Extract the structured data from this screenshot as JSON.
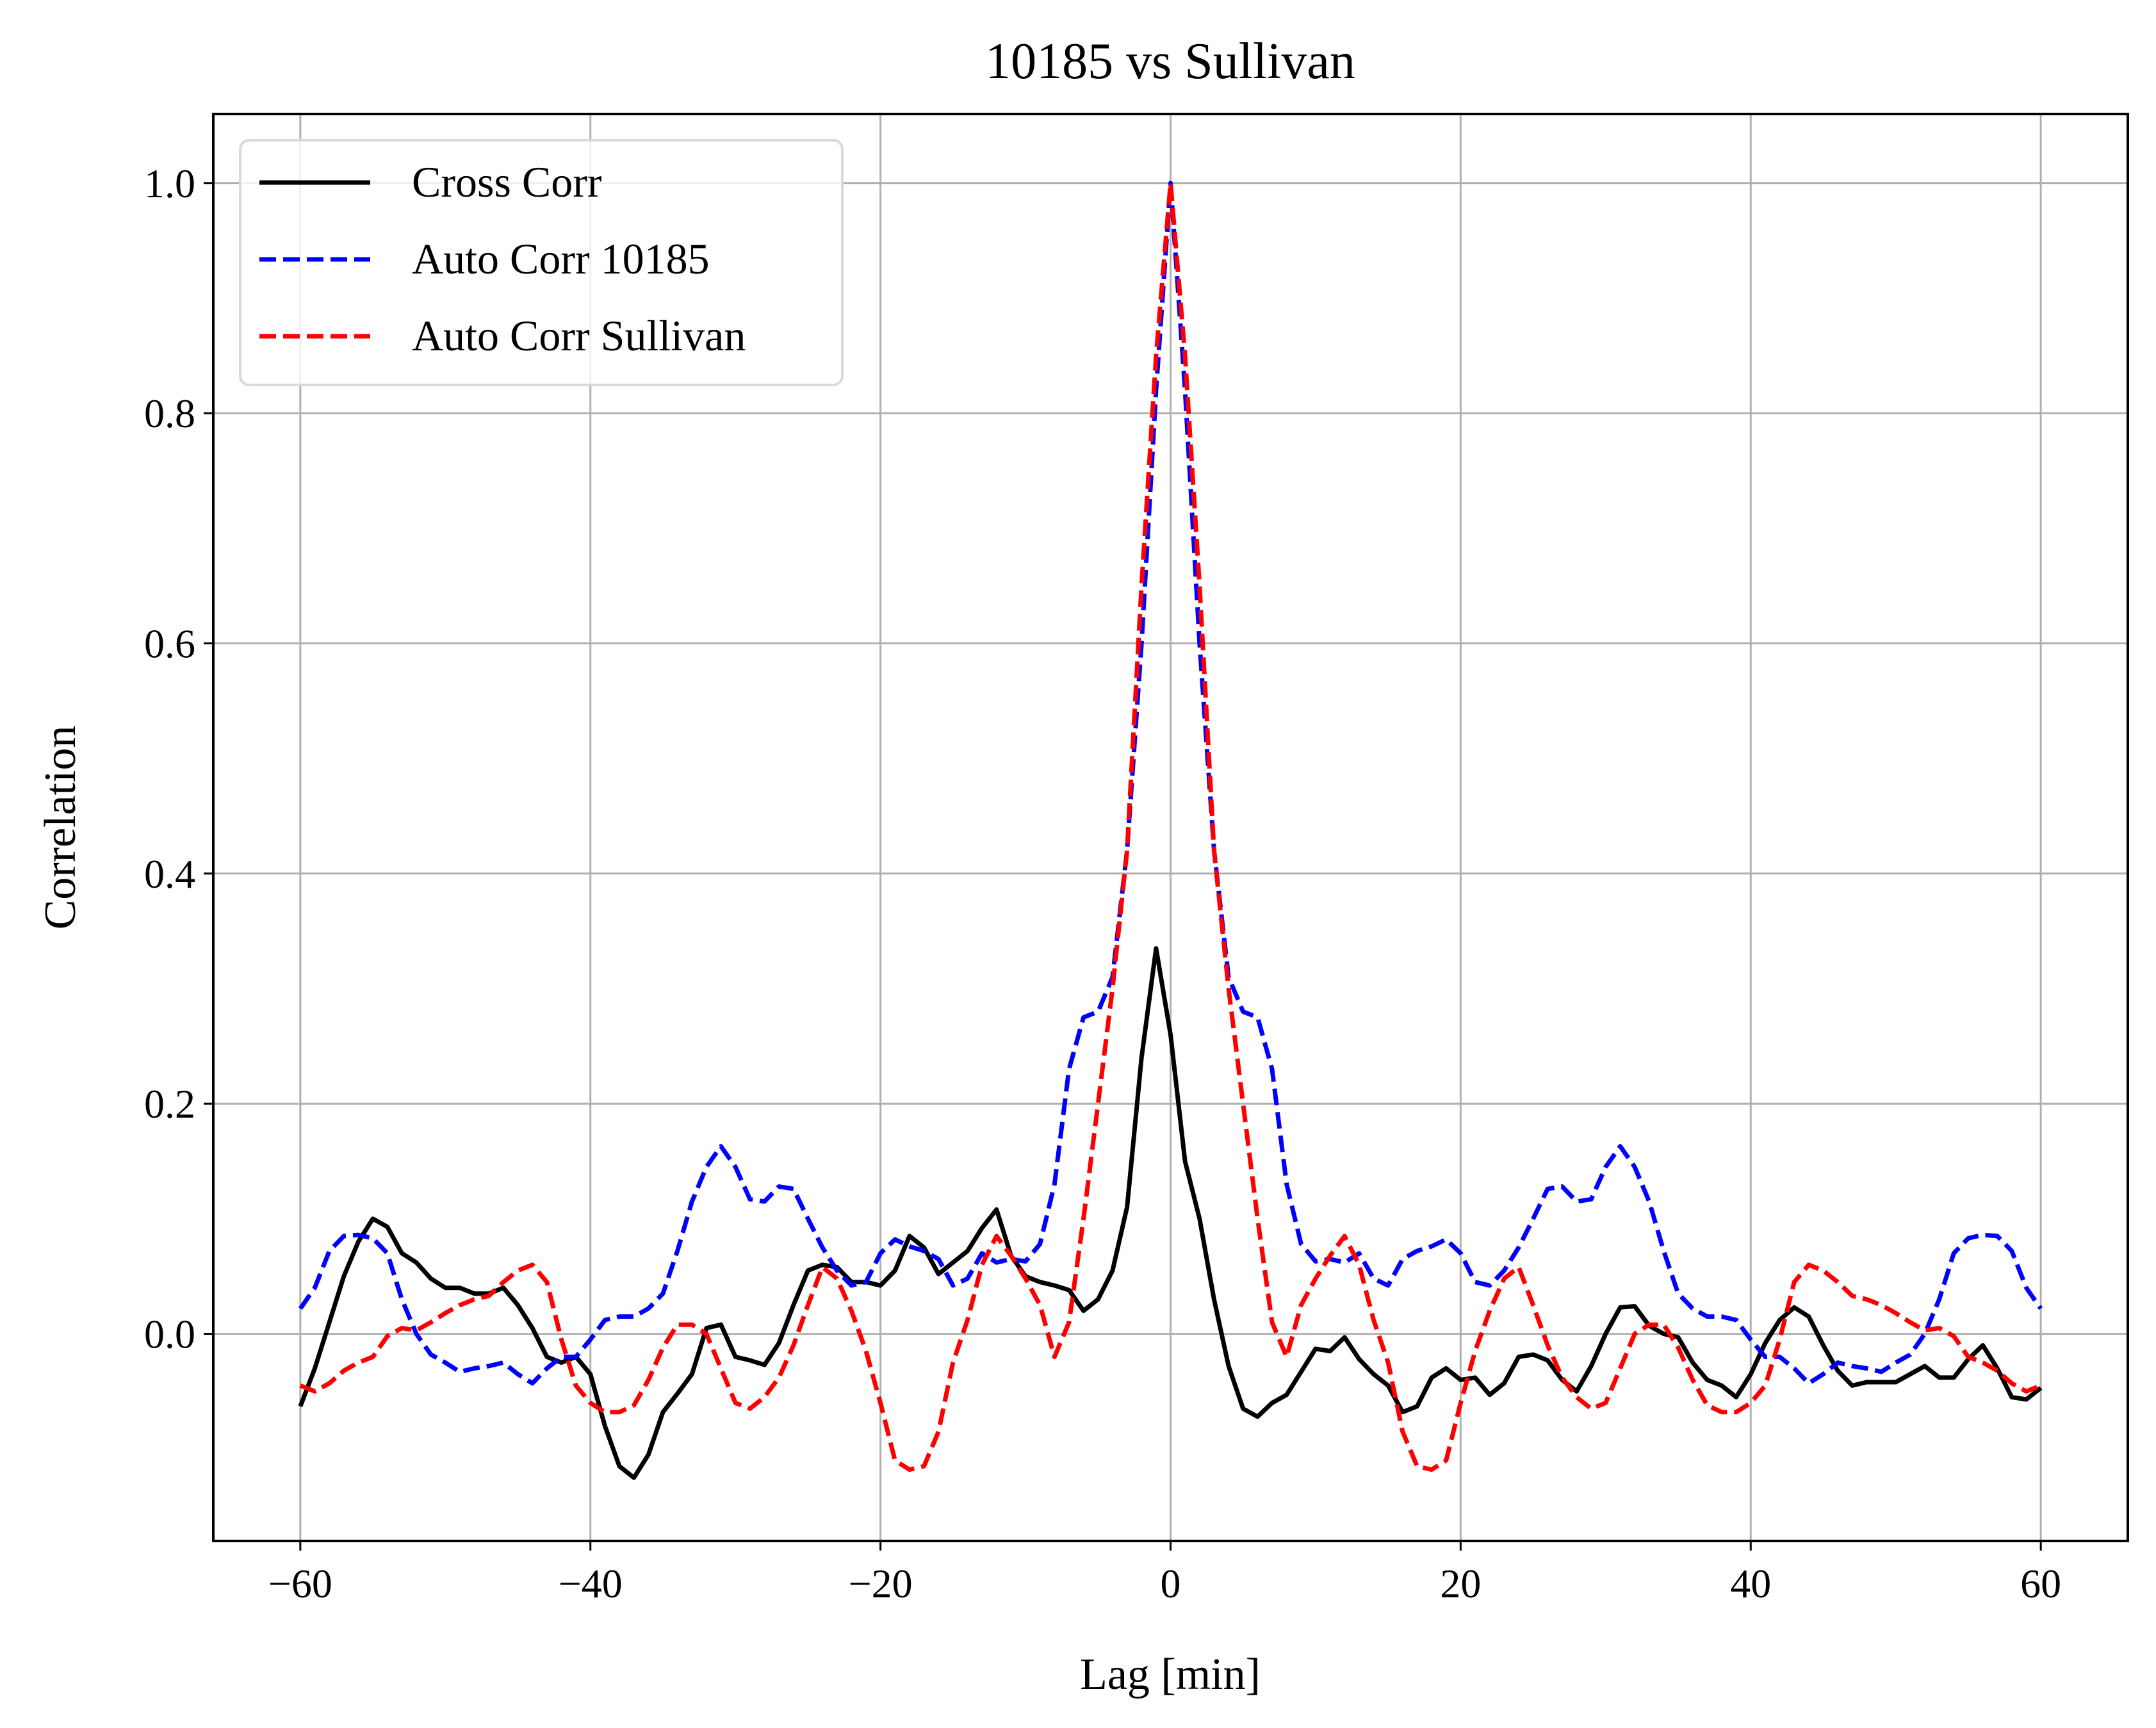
{
  "chart_data": {
    "type": "line",
    "title": "10185 vs Sullivan",
    "xlabel": "Lag [min]",
    "ylabel": "Correlation",
    "xlim": [
      -66,
      66
    ],
    "ylim": [
      -0.18,
      1.06
    ],
    "xticks": [
      -60,
      -40,
      -20,
      0,
      20,
      40,
      60
    ],
    "xtick_labels": [
      "−60",
      "−40",
      "−20",
      "0",
      "20",
      "40",
      "60"
    ],
    "yticks": [
      0.0,
      0.2,
      0.4,
      0.6,
      0.8,
      1.0
    ],
    "ytick_labels": [
      "0.0",
      "0.2",
      "0.4",
      "0.6",
      "0.8",
      "1.0"
    ],
    "grid": true,
    "legend_position": "top-left",
    "series": [
      {
        "name": "Cross Corr",
        "color": "#000000",
        "dash": "solid",
        "x": [
          -60,
          -59,
          -58,
          -57,
          -56,
          -55,
          -54,
          -53,
          -52,
          -51,
          -50,
          -49,
          -48,
          -47,
          -46,
          -45,
          -44,
          -43,
          -42,
          -41,
          -40,
          -39,
          -38,
          -37,
          -36,
          -35,
          -34,
          -33,
          -32,
          -31,
          -30,
          -29,
          -28,
          -27,
          -26,
          -25,
          -24,
          -23,
          -22,
          -21,
          -20,
          -19,
          -18,
          -17,
          -16,
          -15,
          -14,
          -13,
          -12,
          -11,
          -10,
          -9,
          -8,
          -7,
          -6,
          -5,
          -4,
          -3,
          -2,
          -1,
          0,
          1,
          2,
          3,
          4,
          5,
          6,
          7,
          8,
          9,
          10,
          11,
          12,
          13,
          14,
          15,
          16,
          17,
          18,
          19,
          20,
          21,
          22,
          23,
          24,
          25,
          26,
          27,
          28,
          29,
          30,
          31,
          32,
          33,
          34,
          35,
          36,
          37,
          38,
          39,
          40,
          41,
          42,
          43,
          44,
          45,
          46,
          47,
          48,
          49,
          50,
          51,
          52,
          53,
          54,
          55,
          56,
          57,
          58,
          59,
          60
        ],
        "y": [
          -0.063,
          -0.03,
          0.01,
          0.05,
          0.08,
          0.1,
          0.093,
          0.07,
          0.062,
          0.048,
          0.04,
          0.04,
          0.035,
          0.035,
          0.04,
          0.025,
          0.005,
          -0.02,
          -0.025,
          -0.02,
          -0.035,
          -0.08,
          -0.115,
          -0.125,
          -0.105,
          -0.068,
          -0.052,
          -0.035,
          0.005,
          0.008,
          -0.02,
          -0.023,
          -0.027,
          -0.008,
          0.025,
          0.055,
          0.06,
          0.058,
          0.045,
          0.045,
          0.042,
          0.055,
          0.085,
          0.075,
          0.052,
          0.062,
          0.072,
          0.092,
          0.108,
          0.068,
          0.05,
          0.045,
          0.042,
          0.038,
          0.02,
          0.03,
          0.055,
          0.11,
          0.24,
          0.335,
          0.26,
          0.15,
          0.1,
          0.03,
          -0.028,
          -0.065,
          -0.072,
          -0.06,
          -0.053,
          -0.033,
          -0.013,
          -0.015,
          -0.003,
          -0.022,
          -0.035,
          -0.045,
          -0.068,
          -0.063,
          -0.038,
          -0.03,
          -0.04,
          -0.038,
          -0.053,
          -0.043,
          -0.02,
          -0.018,
          -0.023,
          -0.04,
          -0.05,
          -0.028,
          0.0,
          0.023,
          0.024,
          0.007,
          0.0,
          -0.003,
          -0.025,
          -0.04,
          -0.045,
          -0.055,
          -0.035,
          -0.008,
          0.012,
          0.023,
          0.015,
          -0.01,
          -0.032,
          -0.045,
          -0.042,
          -0.042,
          -0.042,
          -0.035,
          -0.028,
          -0.038,
          -0.038,
          -0.022,
          -0.01,
          -0.03,
          -0.055,
          -0.057,
          -0.047
        ]
      },
      {
        "name": "Auto Corr 10185",
        "color": "#0000ff",
        "dash": "dashed",
        "x": [
          -60,
          -59,
          -58,
          -57,
          -56,
          -55,
          -54,
          -53,
          -52,
          -51,
          -50,
          -49,
          -48,
          -47,
          -46,
          -45,
          -44,
          -43,
          -42,
          -41,
          -40,
          -39,
          -38,
          -37,
          -36,
          -35,
          -34,
          -33,
          -32,
          -31,
          -30,
          -29,
          -28,
          -27,
          -26,
          -25,
          -24,
          -23,
          -22,
          -21,
          -20,
          -19,
          -18,
          -17,
          -16,
          -15,
          -14,
          -13,
          -12,
          -11,
          -10,
          -9,
          -8,
          -7,
          -6,
          -5,
          -4,
          -3,
          -2,
          -1,
          0,
          1,
          2,
          3,
          4,
          5,
          6,
          7,
          8,
          9,
          10,
          11,
          12,
          13,
          14,
          15,
          16,
          17,
          18,
          19,
          20,
          21,
          22,
          23,
          24,
          25,
          26,
          27,
          28,
          29,
          30,
          31,
          32,
          33,
          34,
          35,
          36,
          37,
          38,
          39,
          40,
          41,
          42,
          43,
          44,
          45,
          46,
          47,
          48,
          49,
          50,
          51,
          52,
          53,
          54,
          55,
          56,
          57,
          58,
          59,
          60
        ],
        "y": [
          0.022,
          0.04,
          0.072,
          0.085,
          0.086,
          0.083,
          0.07,
          0.03,
          0.0,
          -0.018,
          -0.025,
          -0.033,
          -0.03,
          -0.028,
          -0.025,
          -0.035,
          -0.043,
          -0.03,
          -0.02,
          -0.02,
          -0.005,
          0.012,
          0.015,
          0.015,
          0.022,
          0.035,
          0.072,
          0.115,
          0.145,
          0.163,
          0.145,
          0.117,
          0.115,
          0.128,
          0.126,
          0.1,
          0.075,
          0.055,
          0.042,
          0.045,
          0.07,
          0.082,
          0.076,
          0.072,
          0.065,
          0.042,
          0.048,
          0.07,
          0.062,
          0.065,
          0.063,
          0.078,
          0.13,
          0.23,
          0.275,
          0.28,
          0.31,
          0.42,
          0.6,
          0.82,
          1.0,
          0.82,
          0.6,
          0.42,
          0.31,
          0.28,
          0.275,
          0.23,
          0.13,
          0.078,
          0.063,
          0.065,
          0.062,
          0.07,
          0.048,
          0.042,
          0.065,
          0.072,
          0.076,
          0.082,
          0.07,
          0.045,
          0.042,
          0.055,
          0.075,
          0.1,
          0.126,
          0.128,
          0.115,
          0.117,
          0.145,
          0.163,
          0.145,
          0.115,
          0.072,
          0.035,
          0.022,
          0.015,
          0.015,
          0.012,
          -0.005,
          -0.02,
          -0.02,
          -0.03,
          -0.043,
          -0.035,
          -0.025,
          -0.028,
          -0.03,
          -0.033,
          -0.025,
          -0.018,
          0.0,
          0.03,
          0.07,
          0.083,
          0.086,
          0.085,
          0.072,
          0.04,
          0.022
        ]
      },
      {
        "name": "Auto Corr Sullivan",
        "color": "#ff0000",
        "dash": "dashed",
        "x": [
          -60,
          -59,
          -58,
          -57,
          -56,
          -55,
          -54,
          -53,
          -52,
          -51,
          -50,
          -49,
          -48,
          -47,
          -46,
          -45,
          -44,
          -43,
          -42,
          -41,
          -40,
          -39,
          -38,
          -37,
          -36,
          -35,
          -34,
          -33,
          -32,
          -31,
          -30,
          -29,
          -28,
          -27,
          -26,
          -25,
          -24,
          -23,
          -22,
          -21,
          -20,
          -19,
          -18,
          -17,
          -16,
          -15,
          -14,
          -13,
          -12,
          -11,
          -10,
          -9,
          -8,
          -7,
          -6,
          -5,
          -4,
          -3,
          -2,
          -1,
          0,
          1,
          2,
          3,
          4,
          5,
          6,
          7,
          8,
          9,
          10,
          11,
          12,
          13,
          14,
          15,
          16,
          17,
          18,
          19,
          20,
          21,
          22,
          23,
          24,
          25,
          26,
          27,
          28,
          29,
          30,
          31,
          32,
          33,
          34,
          35,
          36,
          37,
          38,
          39,
          40,
          41,
          42,
          43,
          44,
          45,
          46,
          47,
          48,
          49,
          50,
          51,
          52,
          53,
          54,
          55,
          56,
          57,
          58,
          59,
          60
        ],
        "y": [
          -0.045,
          -0.05,
          -0.043,
          -0.032,
          -0.025,
          -0.02,
          -0.002,
          0.005,
          0.003,
          0.01,
          0.018,
          0.025,
          0.03,
          0.033,
          0.045,
          0.055,
          0.06,
          0.045,
          -0.005,
          -0.045,
          -0.06,
          -0.068,
          -0.068,
          -0.062,
          -0.04,
          -0.012,
          0.008,
          0.008,
          0.0,
          -0.03,
          -0.06,
          -0.065,
          -0.055,
          -0.038,
          -0.01,
          0.025,
          0.058,
          0.048,
          0.02,
          -0.015,
          -0.06,
          -0.11,
          -0.118,
          -0.115,
          -0.085,
          -0.025,
          0.012,
          0.06,
          0.085,
          0.068,
          0.048,
          0.025,
          -0.02,
          0.01,
          0.1,
          0.2,
          0.3,
          0.42,
          0.65,
          0.85,
          1.0,
          0.85,
          0.65,
          0.42,
          0.3,
          0.2,
          0.1,
          0.01,
          -0.02,
          0.025,
          0.048,
          0.068,
          0.085,
          0.06,
          0.012,
          -0.025,
          -0.085,
          -0.115,
          -0.118,
          -0.11,
          -0.06,
          -0.015,
          0.02,
          0.048,
          0.058,
          0.025,
          -0.01,
          -0.038,
          -0.055,
          -0.065,
          -0.06,
          -0.03,
          0.0,
          0.008,
          0.008,
          -0.012,
          -0.04,
          -0.062,
          -0.068,
          -0.068,
          -0.06,
          -0.045,
          -0.005,
          0.045,
          0.06,
          0.055,
          0.045,
          0.033,
          0.03,
          0.025,
          0.018,
          0.01,
          0.003,
          0.005,
          -0.002,
          -0.02,
          -0.025,
          -0.032,
          -0.043,
          -0.05,
          -0.045
        ]
      }
    ]
  }
}
